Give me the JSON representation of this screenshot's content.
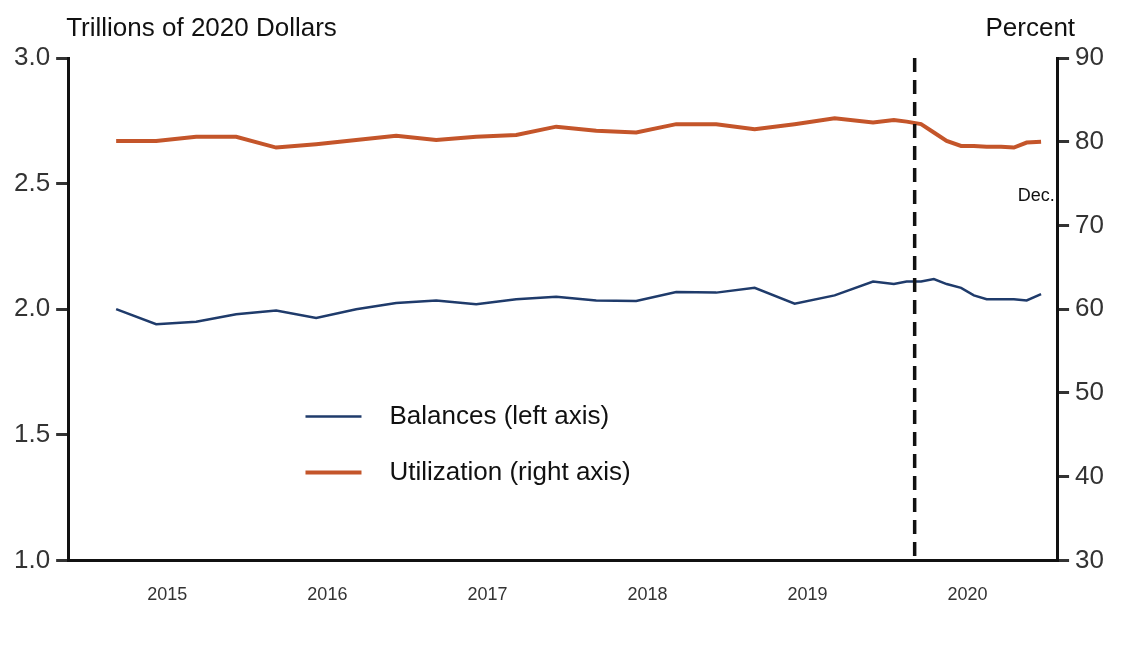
{
  "chart_data": {
    "type": "line",
    "ylabel": "Trillions of 2020 Dollars",
    "y2label": "Percent",
    "x": [
      2015.18,
      2015.43,
      2015.68,
      2015.93,
      2016.18,
      2016.43,
      2016.68,
      2016.93,
      2017.18,
      2017.43,
      2017.68,
      2017.93,
      2018.18,
      2018.43,
      2018.68,
      2018.93,
      2019.17,
      2019.42,
      2019.67,
      2019.91,
      2020.04,
      2020.12,
      2020.21,
      2020.29,
      2020.37,
      2020.46,
      2020.54,
      2020.62,
      2020.71,
      2020.79,
      2020.87,
      2020.96
    ],
    "series": [
      {
        "name": "Balances (left axis)",
        "color": "#1f3b6b",
        "values": [
          2.0,
          1.94,
          1.95,
          1.98,
          1.995,
          1.965,
          2.0,
          2.025,
          2.035,
          2.02,
          2.04,
          2.05,
          2.035,
          2.033,
          2.068,
          2.066,
          2.085,
          2.022,
          2.055,
          2.11,
          2.1,
          2.11,
          2.11,
          2.12,
          2.1,
          2.085,
          2.055,
          2.04,
          2.04,
          2.04,
          2.035,
          2.06
        ]
      },
      {
        "name": "Utilization (right axis)",
        "color": "#c4552a",
        "axis": "y2",
        "values": [
          80.1,
          80.1,
          80.6,
          80.6,
          79.3,
          79.7,
          80.2,
          80.7,
          80.2,
          80.6,
          80.8,
          81.8,
          81.3,
          81.1,
          82.1,
          82.1,
          81.5,
          82.1,
          82.8,
          82.3,
          82.6,
          82.4,
          82.1,
          81.1,
          80.1,
          79.5,
          79.5,
          79.4,
          79.4,
          79.3,
          79.9,
          80.0
        ]
      }
    ],
    "xlim": [
      2014.88,
      2021.06
    ],
    "xticks": [
      {
        "value": 2015.5,
        "label": "2015"
      },
      {
        "value": 2016.5,
        "label": "2016"
      },
      {
        "value": 2017.5,
        "label": "2017"
      },
      {
        "value": 2018.5,
        "label": "2018"
      },
      {
        "value": 2019.5,
        "label": "2019"
      },
      {
        "value": 2020.5,
        "label": "2020"
      }
    ],
    "ylim": [
      1,
      3
    ],
    "yticks": [
      {
        "value": 1,
        "label": "1.0"
      },
      1.5,
      {
        "value": 2,
        "label": "2.0"
      },
      2.5,
      {
        "value": 3,
        "label": "3.0"
      }
    ],
    "y2lim": [
      30,
      90
    ],
    "y2ticks": [
      30,
      40,
      50,
      60,
      70,
      80,
      90
    ],
    "grid": false,
    "legend": "lower center",
    "annotations": [
      {
        "text": "Dec.",
        "x": 2020.93,
        "y": 2.45
      }
    ],
    "reference_lines": [
      {
        "x": 2020.17,
        "line_style": "dashed"
      }
    ]
  }
}
